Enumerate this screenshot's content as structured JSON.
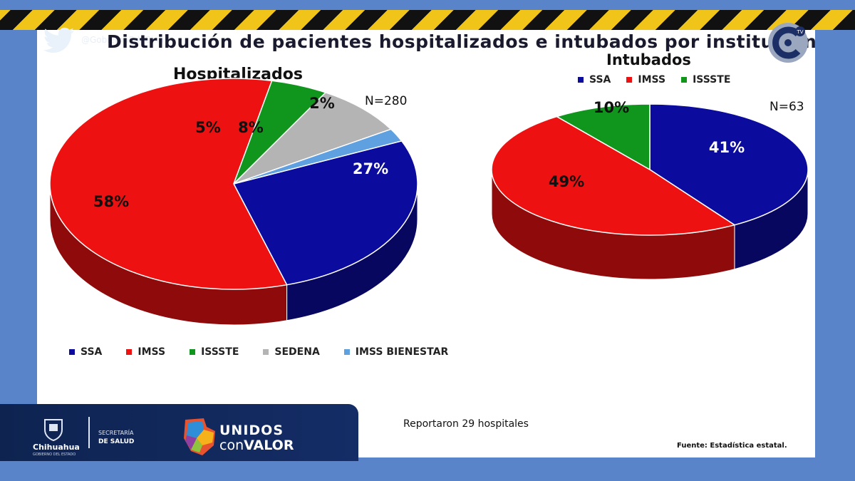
{
  "header": {
    "title": "Distribución de pacientes hospitalizados e intubados por institución",
    "social_handle": "@GobiernoEdoChih",
    "social_icon": "twitter-bird-icon",
    "channel_logo_text": "TV"
  },
  "hazard_colors": [
    "#111111",
    "#f0c419"
  ],
  "colors": {
    "SSA": "#0b0b9e",
    "IMSS": "#ee1111",
    "ISSSTE": "#10961c",
    "SEDENA": "#b4b4b4",
    "IMSS BIENESTAR": "#5ea0e0"
  },
  "chart_data": [
    {
      "type": "pie",
      "title": "Hospitalizados",
      "n_label": "N=280",
      "slices": [
        {
          "label": "SSA",
          "value": 27,
          "value_label": "27%"
        },
        {
          "label": "IMSS",
          "value": 58,
          "value_label": "58%"
        },
        {
          "label": "ISSSTE",
          "value": 5,
          "value_label": "5%"
        },
        {
          "label": "SEDENA",
          "value": 8,
          "value_label": "8%"
        },
        {
          "label": "IMSS BIENESTAR",
          "value": 2,
          "value_label": "2%"
        }
      ],
      "legend": [
        "SSA",
        "IMSS",
        "ISSSTE",
        "SEDENA",
        "IMSS BIENESTAR"
      ],
      "legend_position": "bottom"
    },
    {
      "type": "pie",
      "title": "Intubados",
      "n_label": "N=63",
      "slices": [
        {
          "label": "SSA",
          "value": 41,
          "value_label": "41%"
        },
        {
          "label": "IMSS",
          "value": 49,
          "value_label": "49%"
        },
        {
          "label": "ISSSTE",
          "value": 10,
          "value_label": "10%"
        }
      ],
      "legend": [
        "SSA",
        "IMSS",
        "ISSSTE"
      ],
      "legend_position": "top"
    }
  ],
  "footer": {
    "state_name": "Chihuahua",
    "state_subtitle": "GOBIERNO DEL ESTADO",
    "secretaria_line1": "SECRETARÍA",
    "secretaria_line2": "DE SALUD",
    "campaign_line1": "UNIDOS",
    "campaign_line2_a": "con",
    "campaign_line2_b": "VALOR",
    "hospitals_note": "Reportaron 29 hospitales",
    "source": "Fuente: Estadística estatal."
  }
}
